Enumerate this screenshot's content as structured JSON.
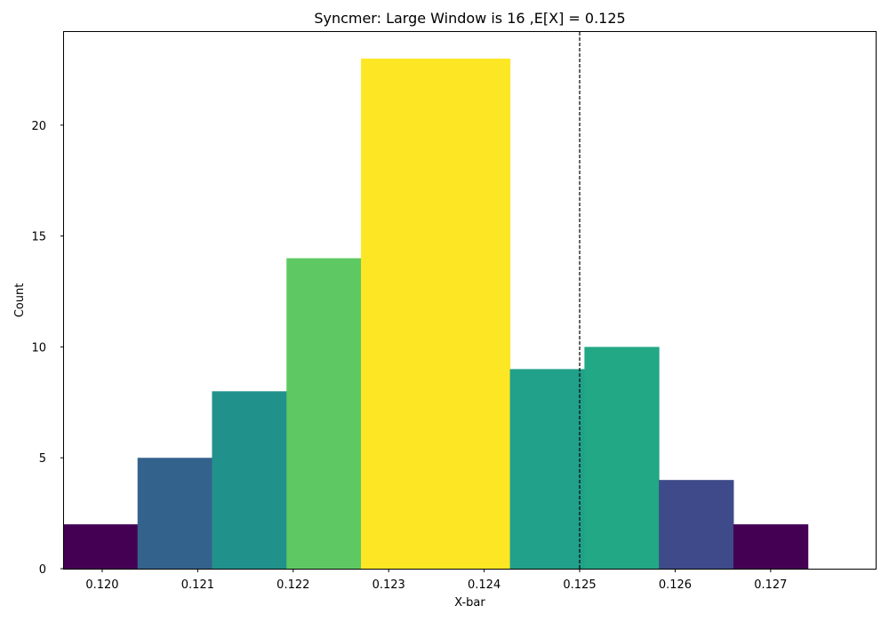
{
  "chart_data": {
    "type": "bar",
    "title": "Syncmer: Large Window is 16 ,E[X] = 0.125",
    "xlabel": "X-bar",
    "ylabel": "Count",
    "xlim": [
      0.1196,
      0.1281
    ],
    "ylim": [
      0,
      24.2
    ],
    "grid": false,
    "legend": "none",
    "x_ticks": [
      "0.120",
      "0.121",
      "0.122",
      "0.123",
      "0.124",
      "0.125",
      "0.126",
      "0.127"
    ],
    "x_tick_values": [
      0.12,
      0.121,
      0.122,
      0.123,
      0.124,
      0.125,
      0.126,
      0.127
    ],
    "y_ticks": [
      "0",
      "5",
      "10",
      "15",
      "20"
    ],
    "y_tick_values": [
      0,
      5,
      10,
      15,
      20
    ],
    "bins": [
      {
        "start": 0.11959,
        "end": 0.12037,
        "count": 2,
        "color": "#440154"
      },
      {
        "start": 0.12037,
        "end": 0.12115,
        "count": 5,
        "color": "#33638d"
      },
      {
        "start": 0.12115,
        "end": 0.12193,
        "count": 8,
        "color": "#21918c"
      },
      {
        "start": 0.12193,
        "end": 0.12271,
        "count": 14,
        "color": "#5ec962"
      },
      {
        "start": 0.12271,
        "end": 0.12349,
        "count": 23,
        "color": "#fde725"
      },
      {
        "start": 0.12349,
        "end": 0.12427,
        "count": 23,
        "color": "#fde725"
      },
      {
        "start": 0.12427,
        "end": 0.12505,
        "count": 9,
        "color": "#21a08a"
      },
      {
        "start": 0.12505,
        "end": 0.12583,
        "count": 10,
        "color": "#22a884"
      },
      {
        "start": 0.12583,
        "end": 0.12661,
        "count": 4,
        "color": "#3e4a89"
      },
      {
        "start": 0.12661,
        "end": 0.12739,
        "count": 2,
        "color": "#440154"
      }
    ],
    "reference_line": {
      "x": 0.125,
      "style": "dashed",
      "color": "#000000"
    }
  }
}
